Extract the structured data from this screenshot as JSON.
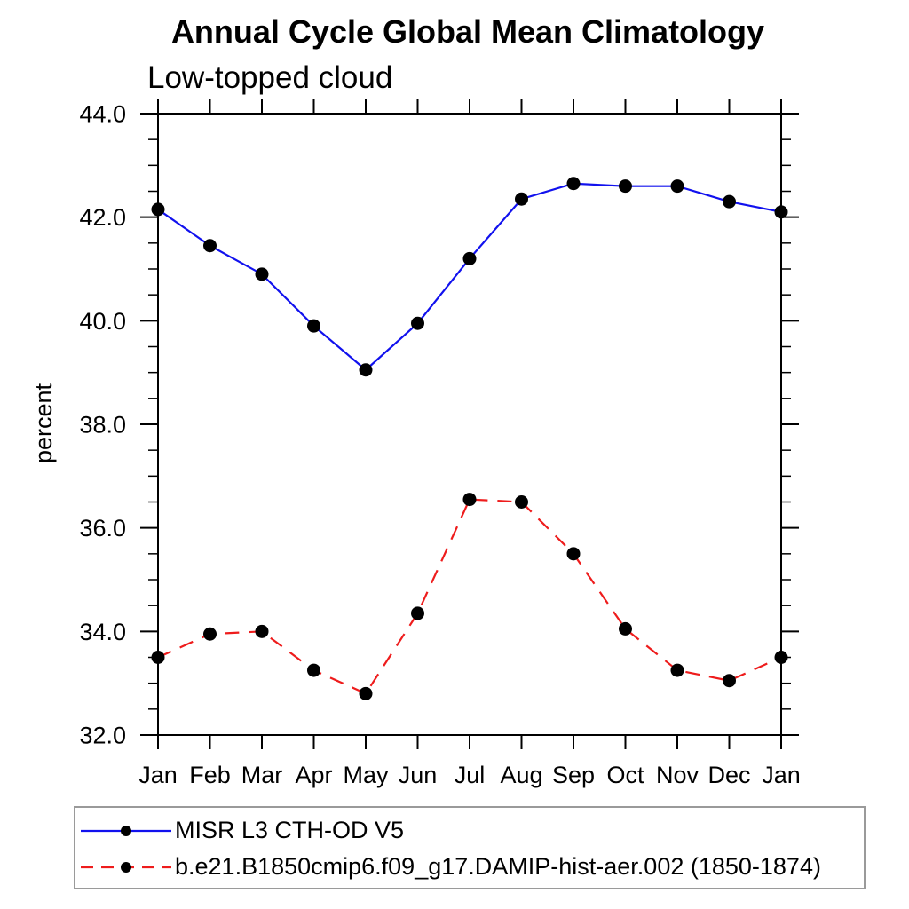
{
  "page": {
    "title": "Annual Cycle Global Mean Climatology",
    "subtitle": "Low-topped cloud"
  },
  "colors": {
    "series_obs_line": "#1111ee",
    "series_model_line": "#ee1c1c",
    "marker": "#000000",
    "axis": "#000000",
    "legend_border": "#9a9a9a"
  },
  "chart_data": {
    "type": "line",
    "title": "Annual Cycle Global Mean Climatology",
    "subtitle": "Low-topped cloud",
    "xlabel": "",
    "ylabel": "percent",
    "ylim": [
      32.0,
      44.0
    ],
    "y_major_tick_values": [
      32,
      34,
      36,
      38,
      40,
      42,
      44
    ],
    "y_tick_labels": [
      "32.0",
      "34.0",
      "36.0",
      "38.0",
      "40.0",
      "42.0",
      "44.0"
    ],
    "y_minor_step": 0.5,
    "grid": false,
    "legend_position": "bottom",
    "categories": [
      "Jan",
      "Feb",
      "Mar",
      "Apr",
      "May",
      "Jun",
      "Jul",
      "Aug",
      "Sep",
      "Oct",
      "Nov",
      "Dec",
      "Jan"
    ],
    "series": [
      {
        "name": "MISR L3 CTH-OD V5",
        "color": "#1111ee",
        "line_style": "solid",
        "marker": "filled-circle",
        "marker_color": "#000000",
        "values": [
          42.15,
          41.45,
          40.9,
          39.9,
          39.05,
          39.95,
          41.2,
          42.35,
          42.65,
          42.6,
          42.6,
          42.3,
          42.1
        ]
      },
      {
        "name": "b.e21.B1850cmip6.f09_g17.DAMIP-hist-aer.002 (1850-1874)",
        "color": "#ee1c1c",
        "line_style": "dashed",
        "marker": "filled-circle",
        "marker_color": "#000000",
        "values": [
          33.5,
          33.95,
          34.0,
          33.25,
          32.8,
          34.35,
          36.55,
          36.5,
          35.5,
          34.05,
          33.25,
          33.05,
          33.5
        ]
      }
    ]
  }
}
